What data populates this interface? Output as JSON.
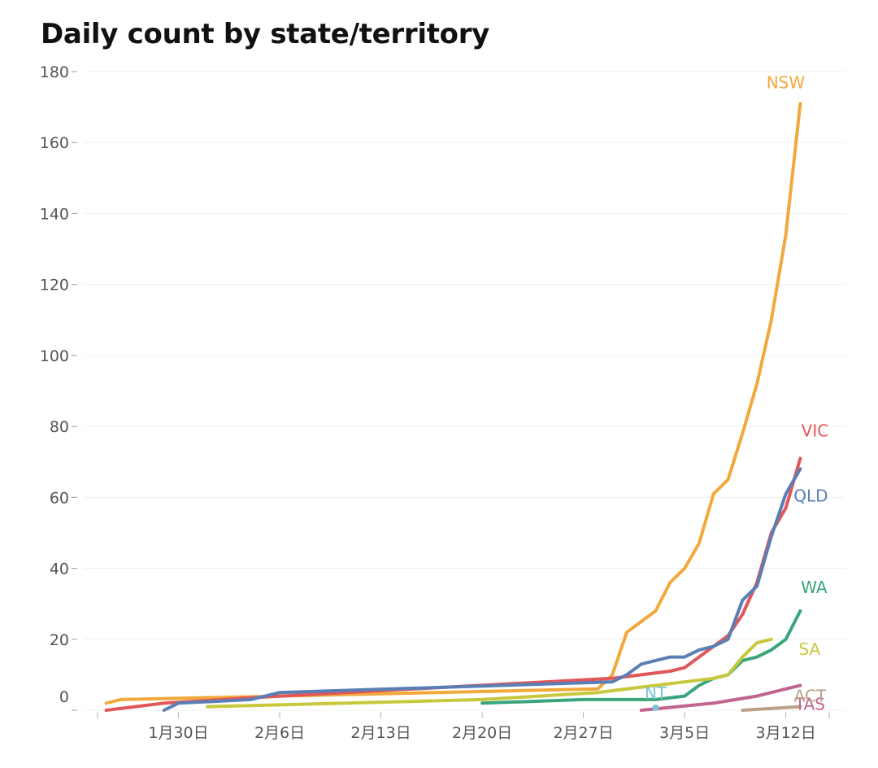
{
  "chart_data": {
    "type": "line",
    "title": "Daily count by state/territory",
    "xlabel": "",
    "ylabel": "",
    "ylim": [
      0,
      180
    ],
    "yticks": [
      0,
      20,
      40,
      60,
      80,
      100,
      120,
      140,
      160,
      180
    ],
    "xlim": [
      -7,
      45
    ],
    "xticks": [
      {
        "day": 0,
        "label": "1月30日"
      },
      {
        "day": 7,
        "label": "2月6日"
      },
      {
        "day": 14,
        "label": "2月13日"
      },
      {
        "day": 21,
        "label": "2月20日"
      },
      {
        "day": 28,
        "label": "2月27日"
      },
      {
        "day": 35,
        "label": "3月5日"
      },
      {
        "day": 42,
        "label": "3月12日"
      }
    ],
    "grid": true,
    "legend": "labels at line ends",
    "series": [
      {
        "name": "NSW",
        "color": "#f2a93b",
        "points": [
          [
            -5,
            2
          ],
          [
            -4,
            3
          ],
          [
            7,
            4
          ],
          [
            29,
            6
          ],
          [
            30,
            10
          ],
          [
            31,
            22
          ],
          [
            32,
            25
          ],
          [
            33,
            28
          ],
          [
            34,
            36
          ],
          [
            35,
            40
          ],
          [
            36,
            47
          ],
          [
            37,
            61
          ],
          [
            38,
            65
          ],
          [
            39,
            78
          ],
          [
            40,
            92
          ],
          [
            41,
            110
          ],
          [
            42,
            134
          ],
          [
            43,
            171
          ]
        ]
      },
      {
        "name": "VIC",
        "color": "#e15759",
        "points": [
          [
            -5,
            0
          ],
          [
            -1,
            2
          ],
          [
            7,
            4
          ],
          [
            30,
            9
          ],
          [
            32,
            10
          ],
          [
            34,
            11
          ],
          [
            35,
            12
          ],
          [
            36,
            15
          ],
          [
            37,
            18
          ],
          [
            38,
            21
          ],
          [
            39,
            27
          ],
          [
            40,
            36
          ],
          [
            41,
            50
          ],
          [
            42,
            57
          ],
          [
            43,
            71
          ]
        ]
      },
      {
        "name": "QLD",
        "color": "#5b7fb5",
        "points": [
          [
            -1,
            0
          ],
          [
            0,
            2
          ],
          [
            5,
            3
          ],
          [
            7,
            5
          ],
          [
            30,
            8
          ],
          [
            31,
            10
          ],
          [
            32,
            13
          ],
          [
            33,
            14
          ],
          [
            34,
            15
          ],
          [
            35,
            15
          ],
          [
            36,
            17
          ],
          [
            37,
            18
          ],
          [
            38,
            20
          ],
          [
            39,
            31
          ],
          [
            40,
            35
          ],
          [
            41,
            49
          ],
          [
            42,
            61
          ],
          [
            43,
            68
          ]
        ]
      },
      {
        "name": "WA",
        "color": "#3aa57a",
        "points": [
          [
            21,
            2
          ],
          [
            28,
            3
          ],
          [
            33,
            3
          ],
          [
            35,
            4
          ],
          [
            36,
            7
          ],
          [
            37,
            9
          ],
          [
            38,
            10
          ],
          [
            39,
            14
          ],
          [
            40,
            15
          ],
          [
            41,
            17
          ],
          [
            42,
            20
          ],
          [
            43,
            28
          ]
        ]
      },
      {
        "name": "SA",
        "color": "#c8c83c",
        "points": [
          [
            2,
            1
          ],
          [
            21,
            3
          ],
          [
            29,
            5
          ],
          [
            33,
            7
          ],
          [
            37,
            9
          ],
          [
            38,
            10
          ],
          [
            39,
            15
          ],
          [
            40,
            19
          ],
          [
            41,
            20
          ]
        ]
      },
      {
        "name": "TAS",
        "color": "#c06590",
        "points": [
          [
            32,
            0
          ],
          [
            37,
            2
          ],
          [
            40,
            4
          ],
          [
            42,
            6
          ],
          [
            43,
            7
          ]
        ]
      },
      {
        "name": "ACT",
        "color": "#bba08a",
        "points": [
          [
            39,
            0
          ],
          [
            43,
            1
          ]
        ]
      },
      {
        "name": "NT",
        "color": "#7cc3d8",
        "points": [
          [
            33,
            0
          ]
        ]
      }
    ]
  }
}
